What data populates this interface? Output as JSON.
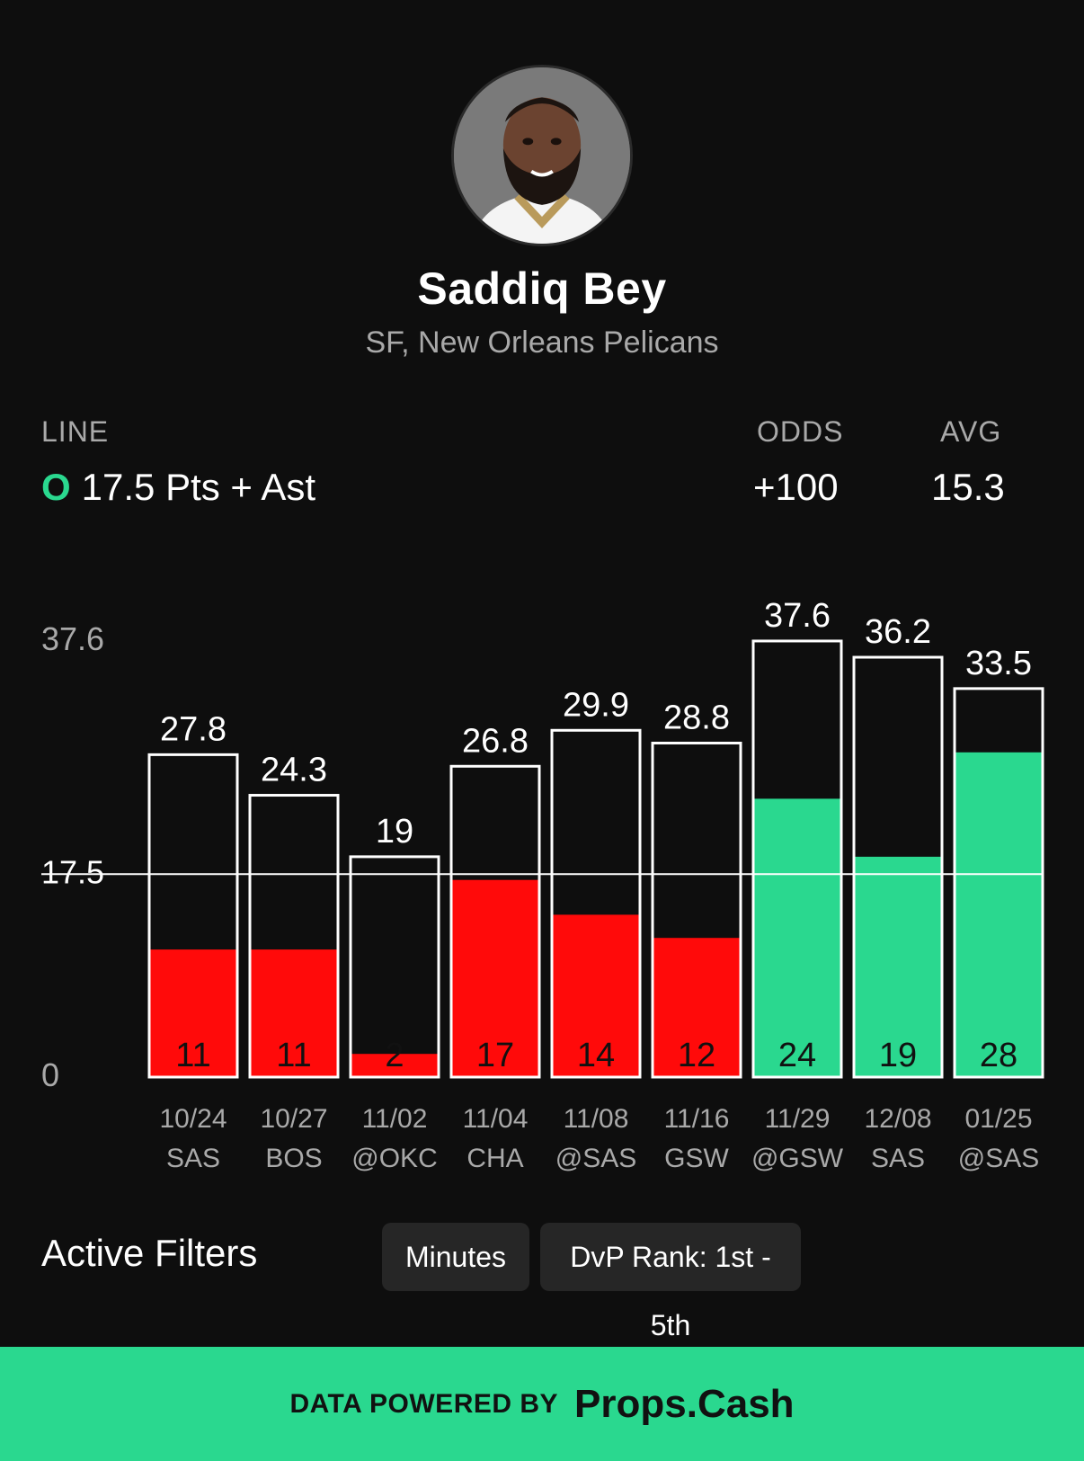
{
  "player": {
    "name": "Saddiq Bey",
    "subtitle": "SF, New Orleans Pelicans"
  },
  "stats": {
    "line_label": "LINE",
    "line_marker": "O",
    "line_value": "17.5 Pts + Ast",
    "odds_label": "ODDS",
    "odds_value": "+100",
    "avg_label": "AVG",
    "avg_value": "15.3"
  },
  "colors": {
    "accent": "#2ad88f",
    "miss": "#ff0a0a",
    "background": "#0e0e0e"
  },
  "chart_data": {
    "type": "bar",
    "y_max_label": "37.6",
    "line_label": "17.5",
    "zero_label": "0",
    "ylim": [
      0,
      37.6
    ],
    "line": 17.5,
    "games": [
      {
        "date": "10/24",
        "opp": "SAS",
        "value": 11,
        "max": 27.8
      },
      {
        "date": "10/27",
        "opp": "BOS",
        "value": 11,
        "max": 24.3
      },
      {
        "date": "11/02",
        "opp": "@OKC",
        "value": 2,
        "max": 19
      },
      {
        "date": "11/04",
        "opp": "CHA",
        "value": 17,
        "max": 26.8
      },
      {
        "date": "11/08",
        "opp": "@SAS",
        "value": 14,
        "max": 29.9
      },
      {
        "date": "11/16",
        "opp": "GSW",
        "value": 12,
        "max": 28.8
      },
      {
        "date": "11/29",
        "opp": "@GSW",
        "value": 24,
        "max": 37.6
      },
      {
        "date": "12/08",
        "opp": "SAS",
        "value": 19,
        "max": 36.2
      },
      {
        "date": "01/25",
        "opp": "@SAS",
        "value": 28,
        "max": 33.5
      }
    ]
  },
  "filters": {
    "title": "Active Filters",
    "chips": [
      "Minutes",
      "DvP Rank: 1st - 5th"
    ]
  },
  "footer": {
    "powered_by": "DATA POWERED BY",
    "brand": "Props.Cash"
  }
}
